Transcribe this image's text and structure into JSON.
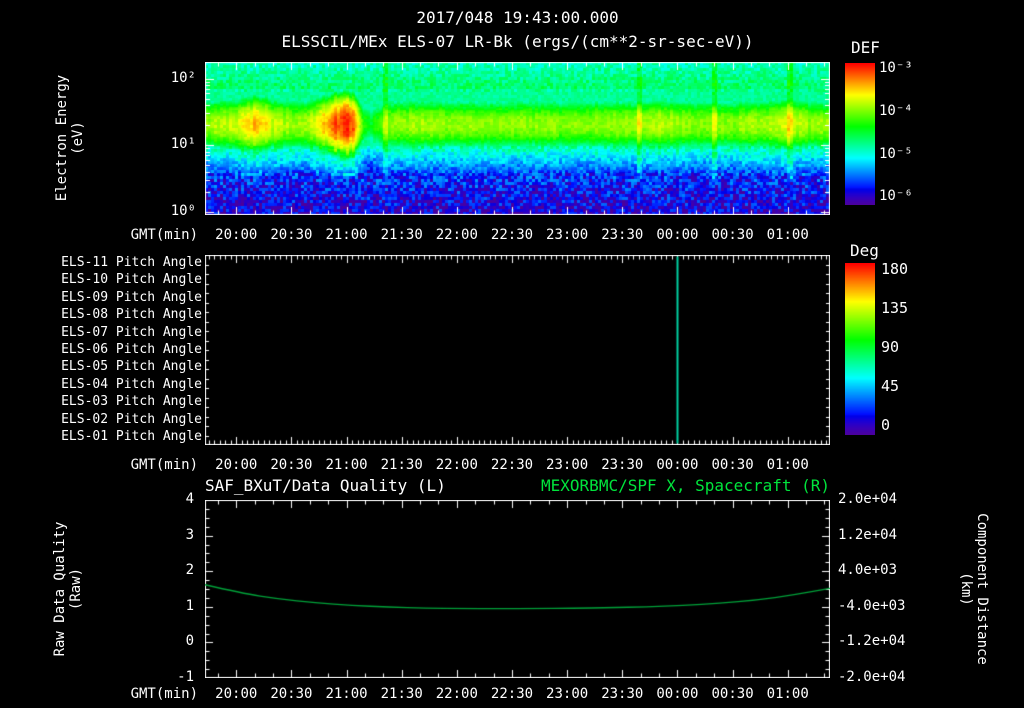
{
  "header": {
    "timestamp": "2017/048 19:43:00.000",
    "title": "ELSSCIL/MEx ELS-07 LR-Bk (ergs/(cm**2-sr-sec-eV))"
  },
  "labels": {
    "gmt": "GMT(min)",
    "electron_energy_1": "Electron Energy",
    "electron_energy_2": "(eV)",
    "raw_quality_1": "Raw Data Quality",
    "raw_quality_2": "(Raw)",
    "component_distance_1": "Component Distance",
    "component_distance_2": "(km)"
  },
  "colors": {
    "background": "#000000",
    "text": "#ffffff",
    "right_title_green": "#00e43c",
    "curve_green": "#00a33a",
    "event_line_teal": "#00cfa0"
  },
  "axes": {
    "time_label": "GMT(min)",
    "time_ticks": [
      "20:00",
      "20:30",
      "21:00",
      "21:30",
      "22:00",
      "22:30",
      "23:00",
      "23:30",
      "00:00",
      "00:30",
      "01:00"
    ],
    "time_start_offset_min": 17,
    "time_tick_step_min": 30,
    "time_total_min": 340,
    "start_gmt": "19:43"
  },
  "chart_data": [
    {
      "type": "heatmap",
      "panel": "electron energy spectrogram",
      "title": "ELSSCIL/MEx ELS-07 LR-Bk",
      "units": "ergs/(cm**2-sr-sec-eV)",
      "xlabel": "GMT(min)",
      "ylabel": "Electron Energy (eV)",
      "y_scale": "log",
      "log_energy_range": [
        -0.05,
        2.25
      ],
      "y_tick_labels": [
        {
          "label": "10²",
          "log": 2
        },
        {
          "label": "10¹",
          "log": 1
        },
        {
          "label": "10⁰",
          "log": 0
        }
      ],
      "color_scale": {
        "label": "DEF",
        "scale": "log",
        "log_flux_range": [
          -6.4,
          -3.0
        ],
        "tick_labels": [
          "10⁻³",
          "10⁻⁴",
          "10⁻⁵",
          "10⁻⁶"
        ]
      },
      "band_center_log": 1.32,
      "band_sigma_log": 0.33,
      "band_profile": {
        "t": [
          0,
          10,
          18,
          22,
          27,
          32,
          38,
          45,
          55,
          62,
          68,
          73,
          78,
          82,
          86,
          90,
          96,
          105,
          120,
          150,
          180,
          210,
          240,
          250,
          256,
          262,
          275,
          290,
          305,
          312,
          318,
          325,
          334,
          340
        ],
        "a": [
          0.8,
          0.82,
          0.86,
          0.97,
          1.0,
          0.95,
          0.84,
          0.8,
          0.82,
          0.92,
          1.08,
          1.18,
          1.2,
          1.05,
          0.62,
          0.55,
          0.72,
          0.8,
          0.8,
          0.78,
          0.77,
          0.77,
          0.79,
          0.84,
          0.8,
          0.78,
          0.77,
          0.78,
          0.82,
          0.84,
          0.86,
          0.8,
          0.79,
          0.8
        ]
      },
      "streaks_t_min": [
        98,
        236,
        277,
        318
      ]
    },
    {
      "type": "heatmap",
      "panel": "pitch angle stack",
      "rows": [
        "ELS-11 Pitch Angle",
        "ELS-10 Pitch Angle",
        "ELS-09 Pitch Angle",
        "ELS-08 Pitch Angle",
        "ELS-07 Pitch Angle",
        "ELS-06 Pitch Angle",
        "ELS-05 Pitch Angle",
        "ELS-04 Pitch Angle",
        "ELS-03 Pitch Angle",
        "ELS-02 Pitch Angle",
        "ELS-01 Pitch Angle"
      ],
      "color_scale": {
        "label": "Deg",
        "range": [
          0,
          180
        ],
        "tick_labels": [
          "180",
          "135",
          "90",
          "45",
          "0"
        ]
      },
      "visible_data": "panel empty (black) except one vertical data line at 00:00",
      "event_line": {
        "gmt": "00:00",
        "t_min": 257,
        "color": "#00cfa0"
      }
    },
    {
      "type": "line",
      "panel": "data quality / spacecraft component distance",
      "title_left": "SAF_BXuT/Data Quality (L)",
      "title_right": "MEXORBMC/SPF X, Spacecraft (R)",
      "xlabel": "GMT(min)",
      "ylabel_left": "Raw Data Quality (Raw)",
      "ylabel_right": "Component Distance (km)",
      "ylim_left": [
        -1,
        4
      ],
      "ytick_labels_left": [
        "4",
        "3",
        "2",
        "1",
        "0",
        "-1"
      ],
      "ylim_right": [
        -20000,
        20000
      ],
      "ytick_labels_right": [
        "2.0e+04",
        "1.2e+04",
        "4.0e+03",
        "-4.0e+03",
        "-1.2e+04",
        "-2.0e+04"
      ],
      "series": [
        {
          "name": "MEXORBMC/SPF X, Spacecraft",
          "color": "#00a33a",
          "axis": "left",
          "t_min": [
            0,
            20,
            40,
            60,
            80,
            100,
            120,
            140,
            160,
            180,
            200,
            220,
            240,
            260,
            280,
            300,
            320,
            340
          ],
          "values": [
            1.62,
            1.38,
            1.22,
            1.11,
            1.04,
            0.99,
            0.965,
            0.952,
            0.948,
            0.951,
            0.958,
            0.975,
            1.0,
            1.04,
            1.1,
            1.19,
            1.33,
            1.52
          ]
        }
      ]
    }
  ]
}
